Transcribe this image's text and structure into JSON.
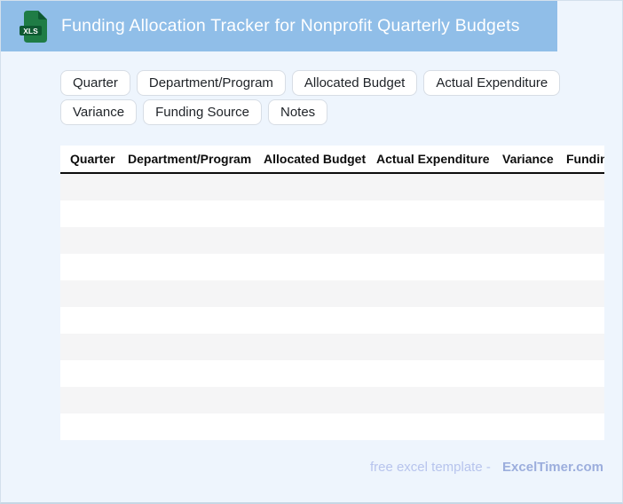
{
  "header": {
    "title": "Funding Allocation Tracker for Nonprofit Quarterly Budgets",
    "file_badge": "XLS"
  },
  "chips": [
    "Quarter",
    "Department/Program",
    "Allocated Budget",
    "Actual Expenditure",
    "Variance",
    "Funding Source",
    "Notes"
  ],
  "table": {
    "columns": [
      "Quarter",
      "Department/Program",
      "Allocated Budget",
      "Actual Expenditure",
      "Variance",
      "Funding Source"
    ],
    "empty_row_count": 10
  },
  "footer": {
    "label": "free excel template -",
    "brand": "ExcelTimer.com"
  },
  "colors": {
    "header_bar": "#90bee8",
    "page_bg": "#eef5fd",
    "stripe": "#f5f5f6",
    "icon_green": "#1f7c45",
    "icon_band": "#0e5931",
    "footer_muted": "#b7c4ed",
    "footer_brand": "#9caedd"
  }
}
